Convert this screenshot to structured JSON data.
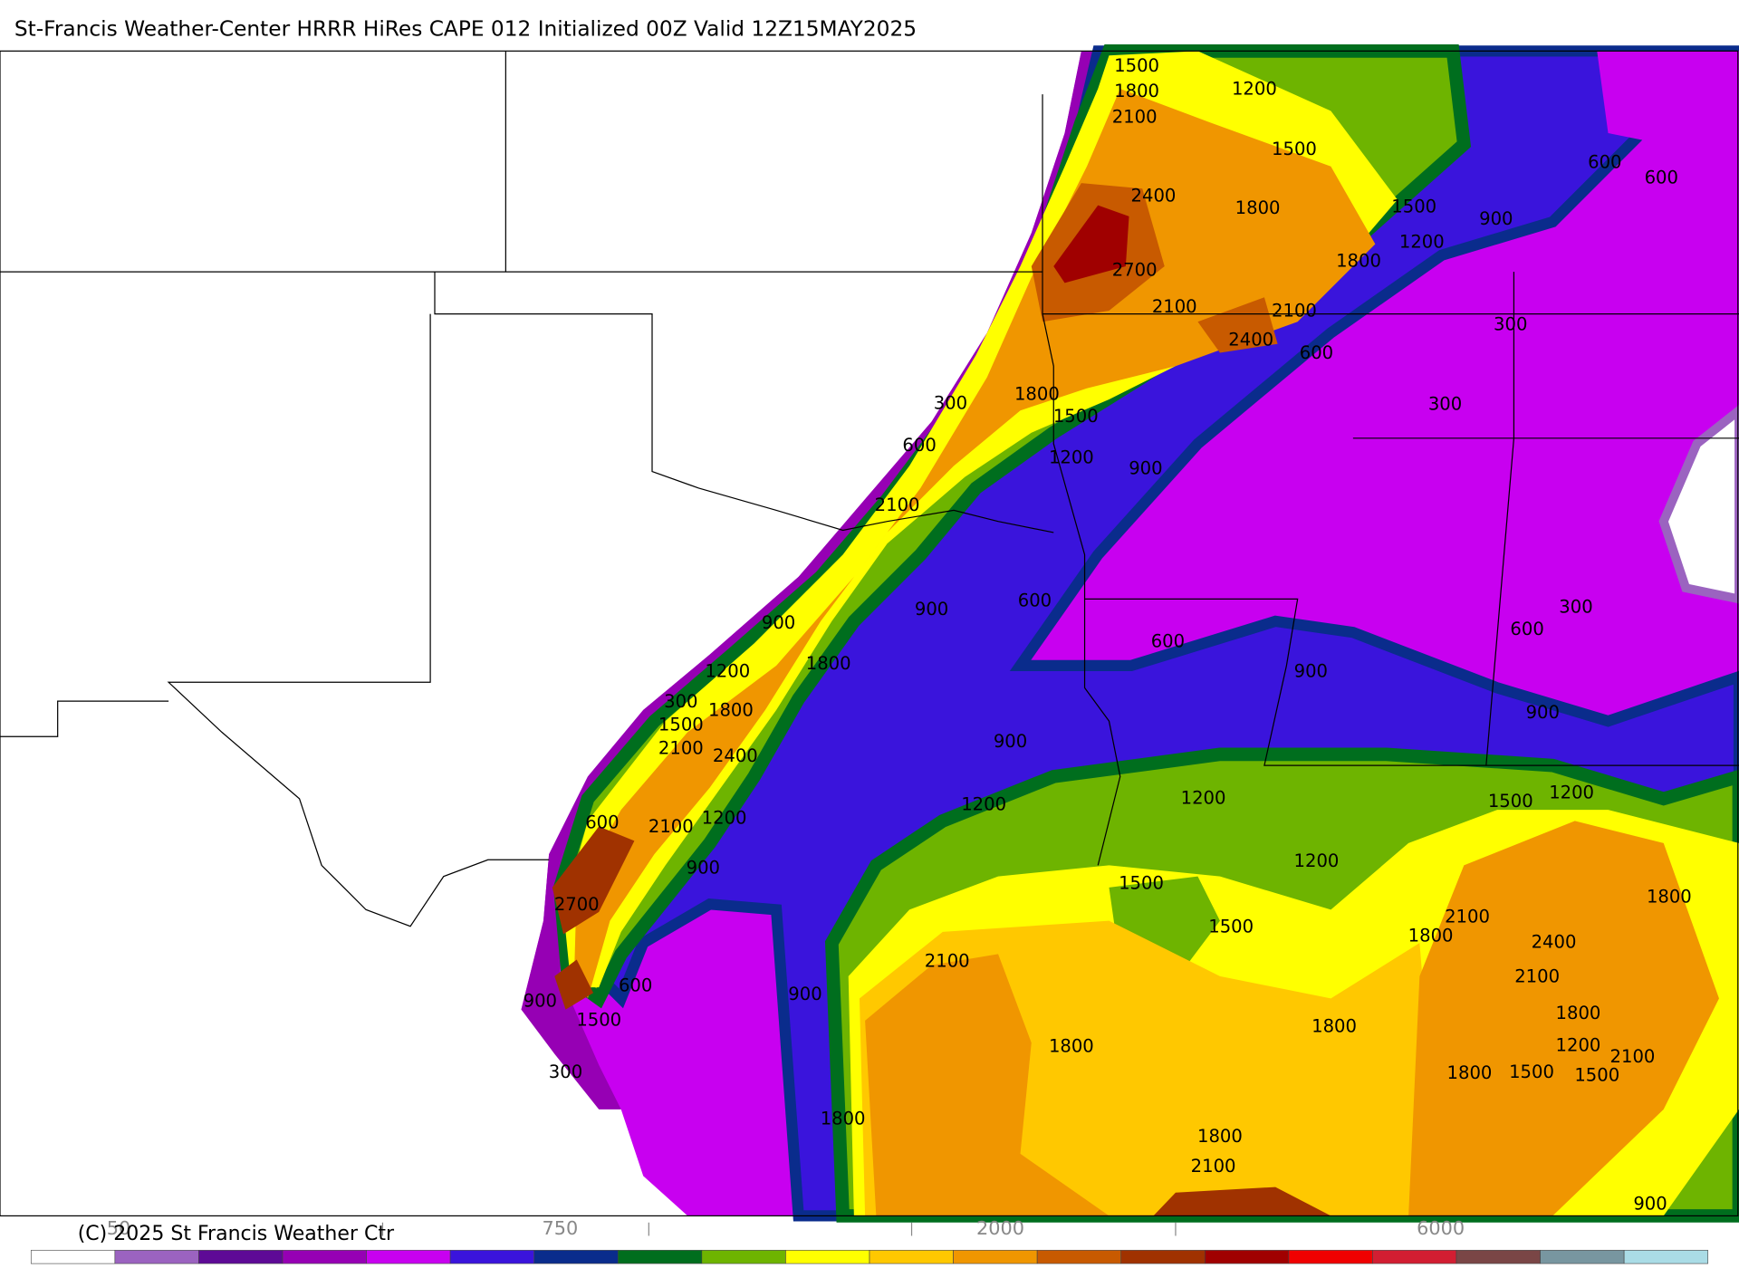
{
  "title": "St-Francis Weather-Center HRRR HiRes CAPE  012 Initialized  00Z Valid 12Z15MAY2025",
  "copyright": "(C) 2025 St Francis Weather Ctr",
  "colorbar": {
    "colors": [
      "#ffffff",
      "#9b63c0",
      "#5e0a96",
      "#9600b4",
      "#c800f0",
      "#3a14dc",
      "#0a2c8c",
      "#006e1e",
      "#6eb400",
      "#ffff00",
      "#ffc800",
      "#f09600",
      "#c85a00",
      "#a03200",
      "#a00000",
      "#f00000",
      "#d21e32",
      "#7a4646",
      "#7896a0",
      "#aadce6"
    ],
    "labels": [
      "50",
      "750",
      "2000",
      "6000"
    ]
  },
  "contour_labels": [
    "1500",
    "1800",
    "2100",
    "1200",
    "1500",
    "600",
    "600",
    "2400",
    "1800",
    "1500",
    "900",
    "1200",
    "1800",
    "2700",
    "2100",
    "2100",
    "2400",
    "300",
    "600",
    "1800",
    "300",
    "1500",
    "300",
    "600",
    "1200",
    "900",
    "2100",
    "900",
    "600",
    "300",
    "600",
    "600",
    "900",
    "1800",
    "1200",
    "900",
    "300",
    "1800",
    "1500",
    "900",
    "2100",
    "2400",
    "900",
    "1200",
    "1200",
    "1500",
    "1200",
    "1200",
    "600",
    "2100",
    "900",
    "1200",
    "1500",
    "1800",
    "2700",
    "1500",
    "2100",
    "1800",
    "2400",
    "2100",
    "2100",
    "600",
    "900",
    "900",
    "1500",
    "1800",
    "1800",
    "1800",
    "1200",
    "2100",
    "300",
    "1800",
    "1500",
    "1500",
    "1800",
    "1800",
    "2100",
    "900"
  ]
}
